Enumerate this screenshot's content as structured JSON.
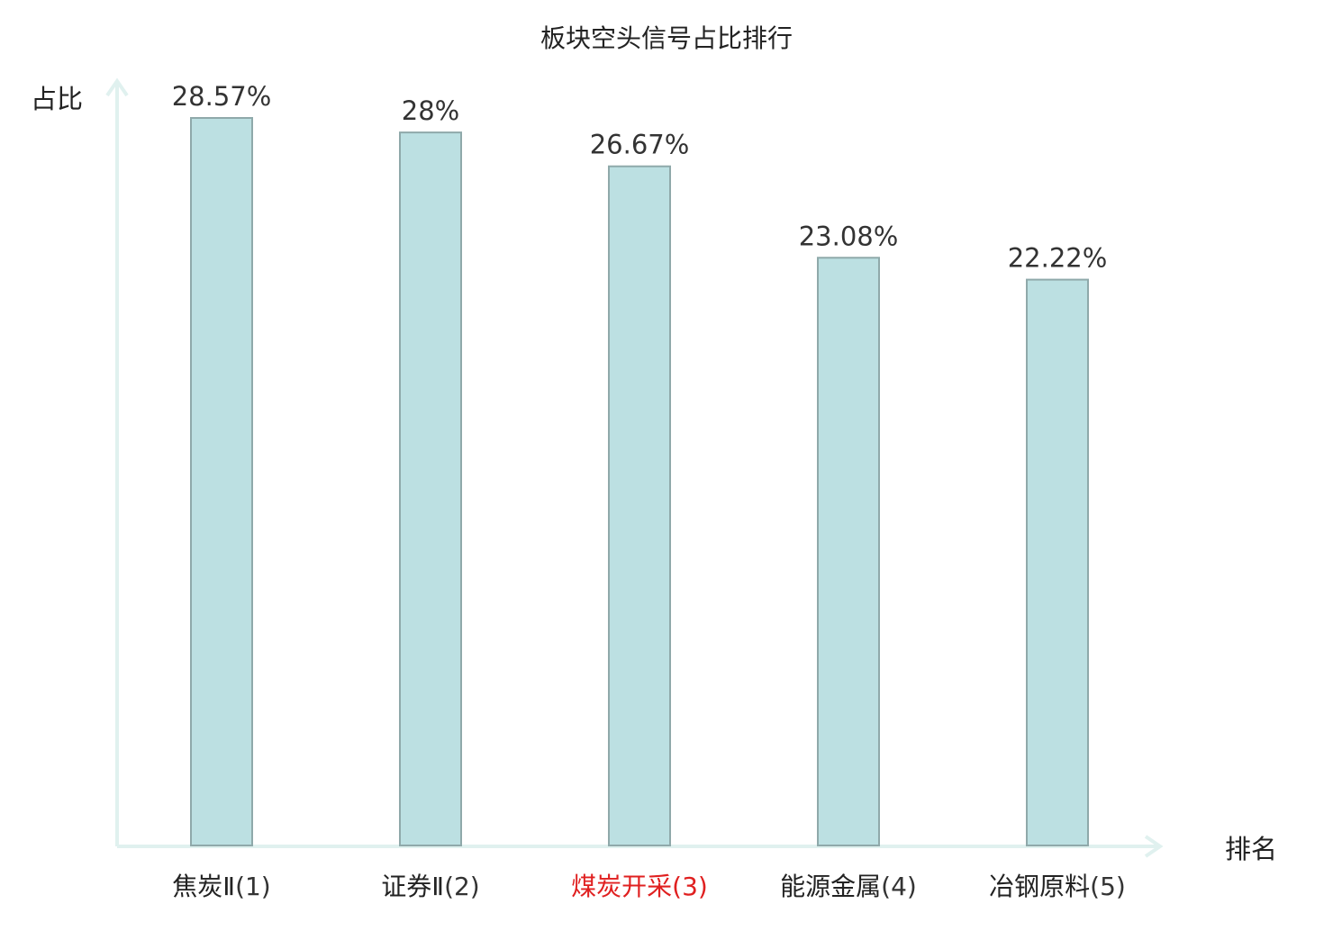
{
  "chart_data": {
    "type": "bar",
    "title": "板块空头信号占比排行",
    "ylabel": "占比",
    "xlabel": "排名",
    "categories": [
      {
        "name": "焦炭Ⅱ",
        "rank": "(1)",
        "highlight": false
      },
      {
        "name": "证券Ⅱ",
        "rank": "(2)",
        "highlight": false
      },
      {
        "name": "煤炭开采",
        "rank": "(3)",
        "highlight": true
      },
      {
        "name": "能源金属",
        "rank": "(4)",
        "highlight": false
      },
      {
        "name": "冶钢原料",
        "rank": "(5)",
        "highlight": false
      }
    ],
    "values": [
      28.57,
      28,
      26.67,
      23.08,
      22.22
    ],
    "value_labels": [
      "28.57%",
      "28%",
      "26.67%",
      "23.08%",
      "22.22%"
    ],
    "unit": "%",
    "ylim": [
      0,
      28.57
    ],
    "grid": false,
    "colors": {
      "bar_fill": "#bce0e2",
      "bar_stroke": "#8fa9aa",
      "axis": "#e0f1ef",
      "text": "#222222",
      "label_text": "#333333",
      "highlight_text": "#e02020"
    }
  }
}
